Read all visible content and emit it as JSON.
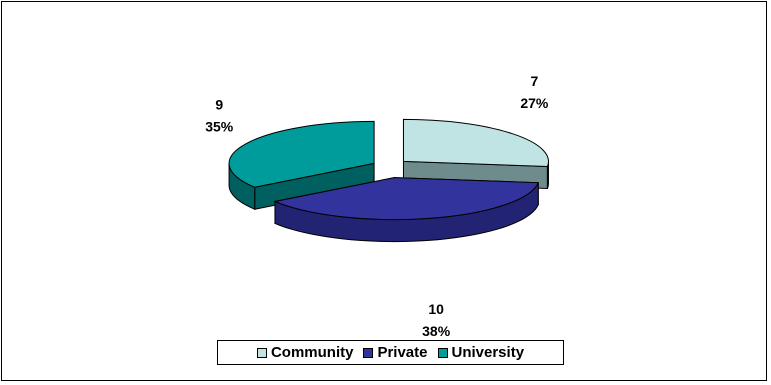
{
  "chart_data": {
    "type": "pie",
    "style": "3d-exploded",
    "categories": [
      "Community",
      "Private",
      "University"
    ],
    "values": [
      7,
      10,
      9
    ],
    "percent_labels": [
      "27%",
      "38%",
      "35%"
    ],
    "value_labels": [
      "7",
      "10",
      "9"
    ],
    "colors": {
      "Community": {
        "top": "#C0E4E4",
        "side": "#6F8C8C"
      },
      "Private": {
        "top": "#33339E",
        "side": "#232373"
      },
      "University": {
        "top": "#009C9C",
        "side": "#005F5F"
      }
    },
    "legend_placement": "bottom",
    "legend": [
      {
        "label": "Community",
        "color": "#C0E4E4"
      },
      {
        "label": "Private",
        "color": "#33339E"
      },
      {
        "label": "University",
        "color": "#009C9C"
      }
    ]
  }
}
